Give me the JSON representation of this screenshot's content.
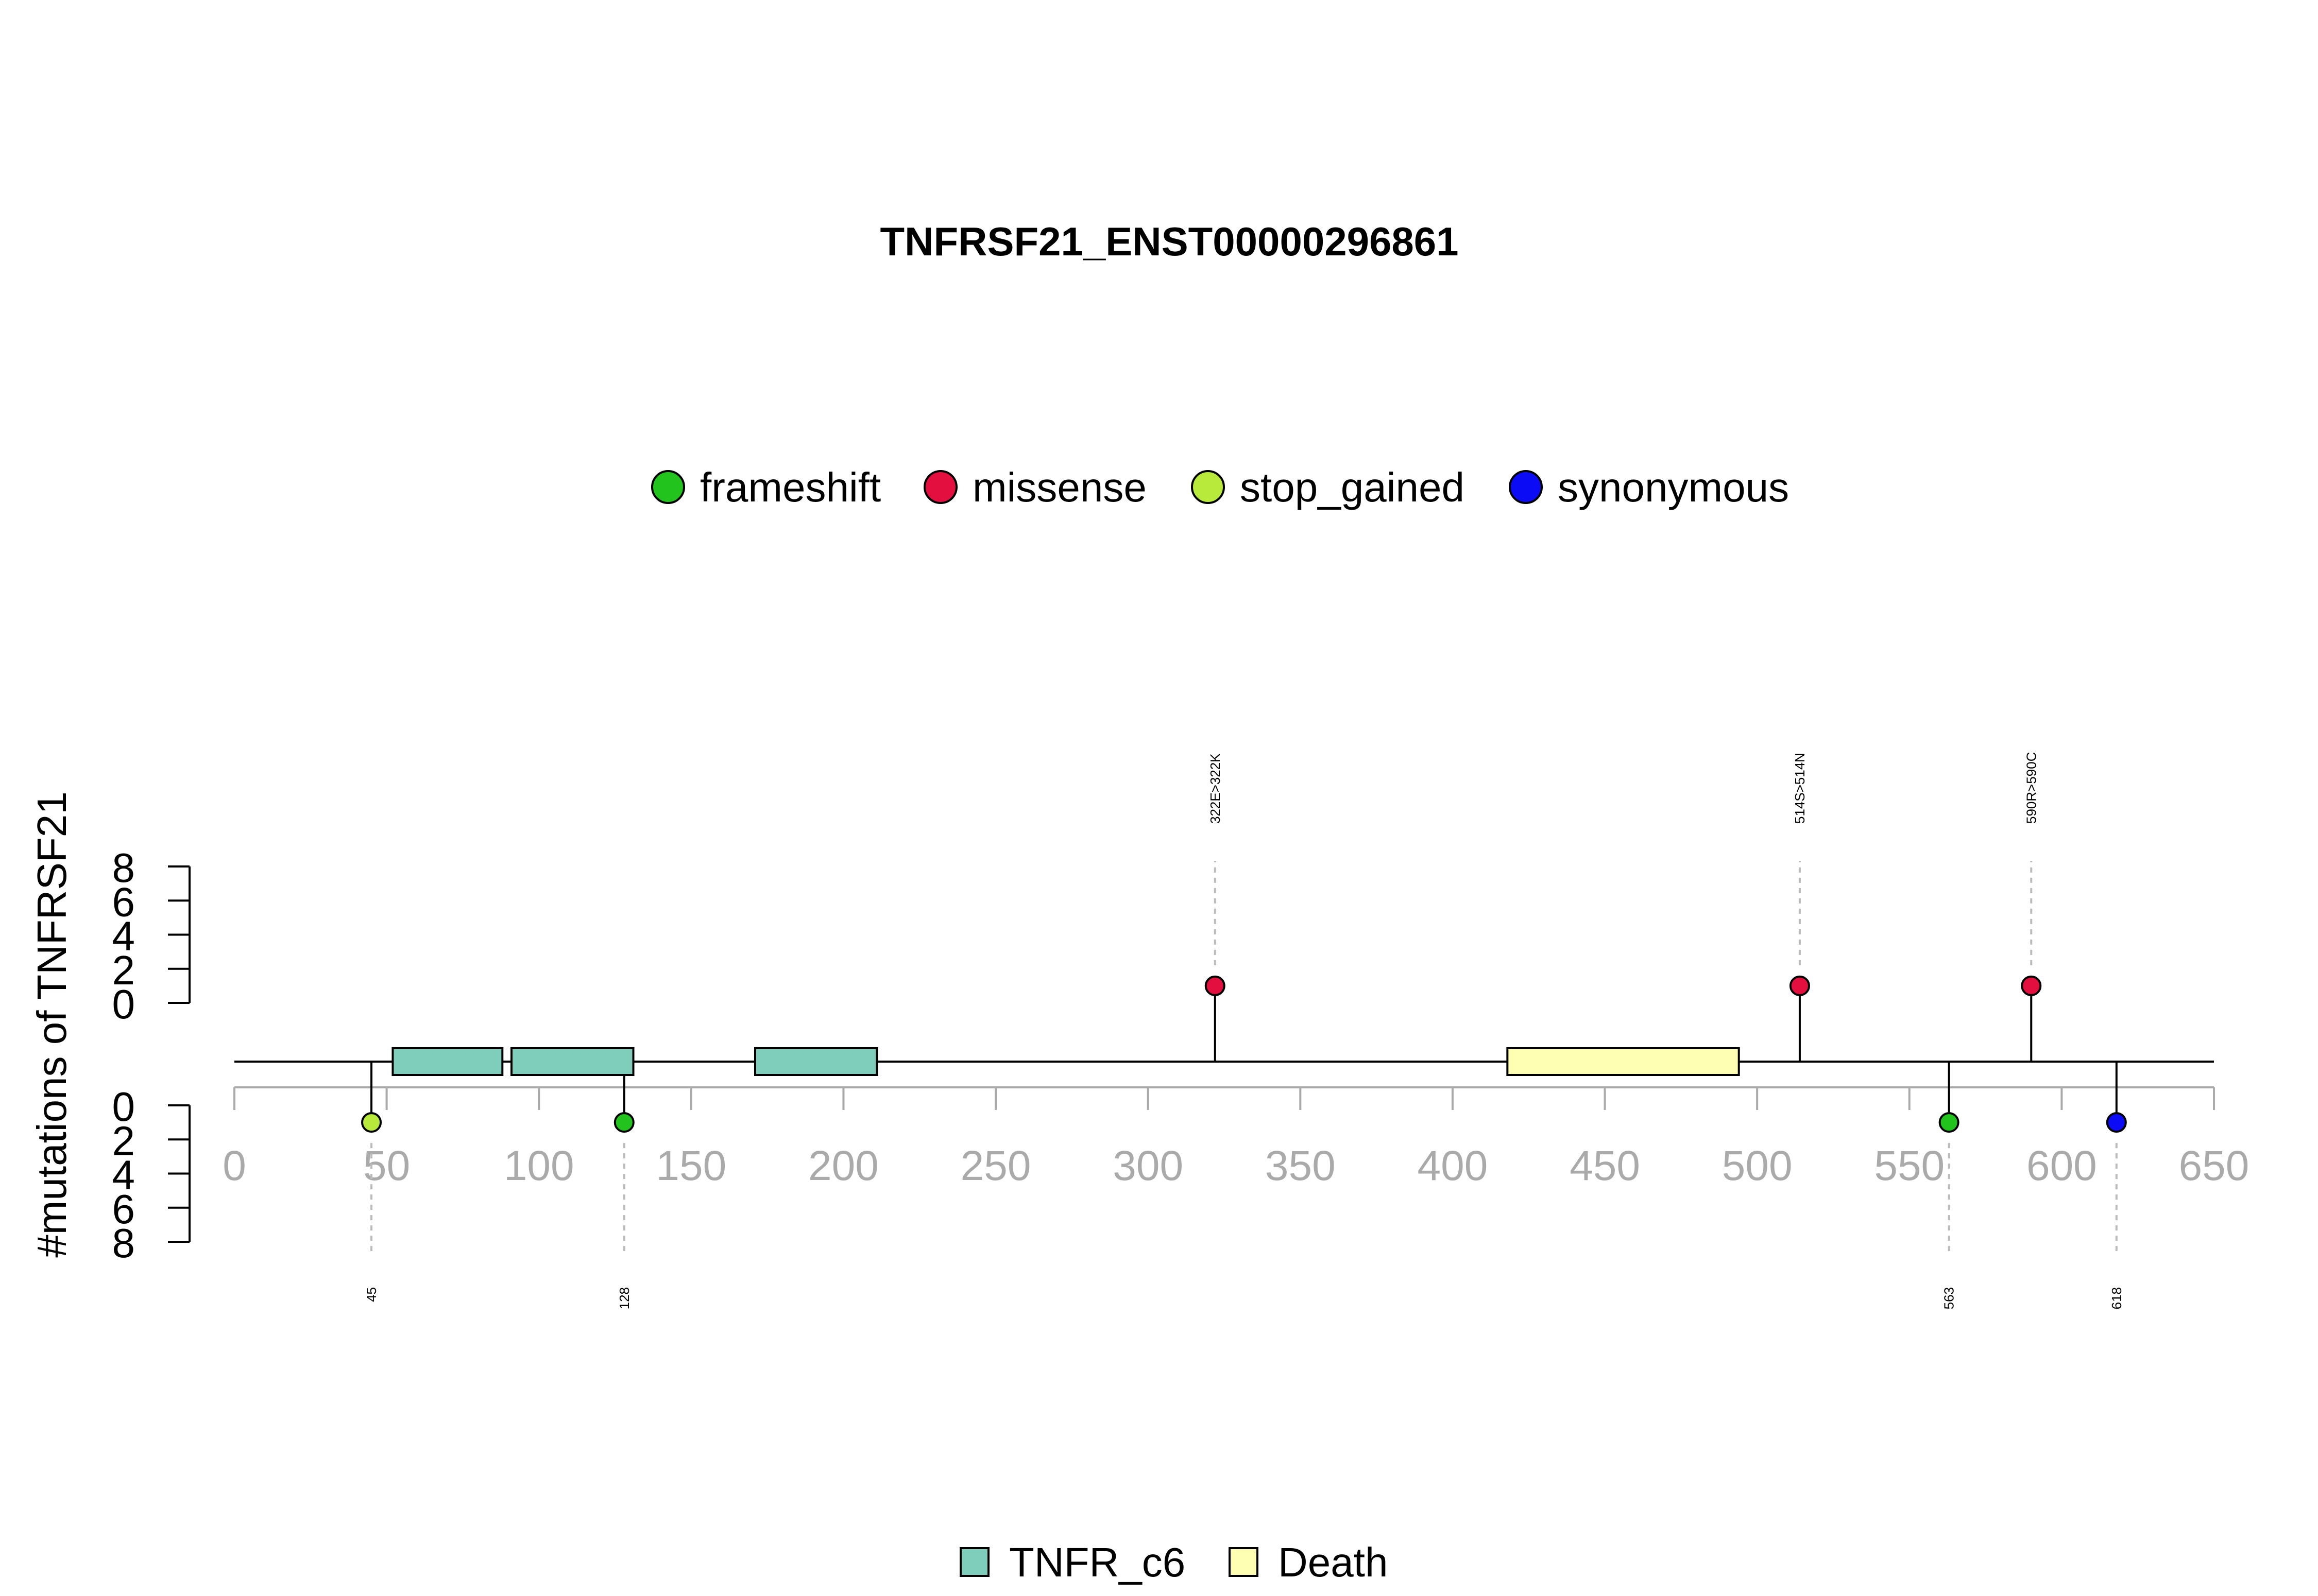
{
  "chart_data": {
    "type": "lollipop",
    "title": "TNFRSF21_ENST00000296861",
    "ylabel": "#mutations of TNFRSF21",
    "xlim": [
      0,
      650
    ],
    "x_ticks": [
      0,
      50,
      100,
      150,
      200,
      250,
      300,
      350,
      400,
      450,
      500,
      550,
      600,
      650
    ],
    "y_ticks_top": [
      0,
      2,
      4,
      6,
      8
    ],
    "y_ticks_bottom": [
      0,
      2,
      4,
      6,
      8
    ],
    "ylim": [
      0,
      8
    ],
    "legend_mutations": [
      {
        "name": "frameshift",
        "color": "#22c31c"
      },
      {
        "name": "missense",
        "color": "#e3103f"
      },
      {
        "name": "stop_gained",
        "color": "#b7ea3a"
      },
      {
        "name": "synonymous",
        "color": "#0b0cf5"
      }
    ],
    "legend_domains": [
      {
        "name": "TNFR_c6",
        "color": "#7fcdbb"
      },
      {
        "name": "Death",
        "color": "#ffffb3"
      }
    ],
    "domains": [
      {
        "name": "TNFR_c6",
        "start": 52,
        "end": 88
      },
      {
        "name": "TNFR_c6",
        "start": 91,
        "end": 131
      },
      {
        "name": "TNFR_c6",
        "start": 171,
        "end": 211
      },
      {
        "name": "Death",
        "start": 418,
        "end": 494
      }
    ],
    "mutations_top": [
      {
        "position": 322,
        "count": 1,
        "type": "missense",
        "label": "322E>322K"
      },
      {
        "position": 514,
        "count": 1,
        "type": "missense",
        "label": "514S>514N"
      },
      {
        "position": 590,
        "count": 1,
        "type": "missense",
        "label": "590R>590C"
      }
    ],
    "mutations_bottom": [
      {
        "position": 45,
        "count": 1,
        "type": "stop_gained",
        "label": "45"
      },
      {
        "position": 128,
        "count": 1,
        "type": "frameshift",
        "label": "128"
      },
      {
        "position": 563,
        "count": 1,
        "type": "frameshift",
        "label": "563"
      },
      {
        "position": 618,
        "count": 1,
        "type": "synonymous",
        "label": "618"
      }
    ]
  }
}
